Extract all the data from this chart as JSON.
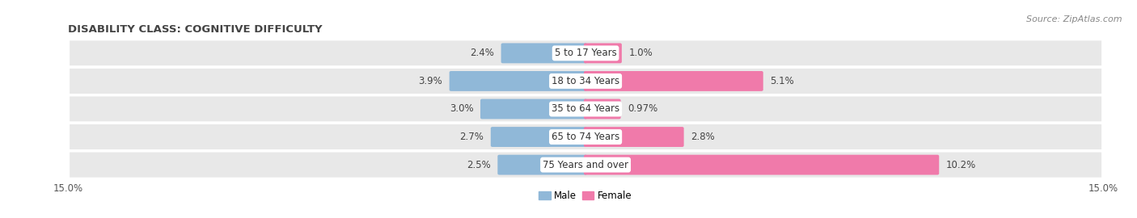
{
  "title": "DISABILITY CLASS: COGNITIVE DIFFICULTY",
  "source": "Source: ZipAtlas.com",
  "categories": [
    "5 to 17 Years",
    "18 to 34 Years",
    "35 to 64 Years",
    "65 to 74 Years",
    "75 Years and over"
  ],
  "male_values": [
    2.4,
    3.9,
    3.0,
    2.7,
    2.5
  ],
  "female_values": [
    1.0,
    5.1,
    0.97,
    2.8,
    10.2
  ],
  "male_color": "#90b8d8",
  "female_color": "#f07aaa",
  "xlim": 15.0,
  "bar_height": 0.62,
  "row_bg_color": "#e8e8e8",
  "row_sep_color": "#ffffff",
  "title_fontsize": 9.5,
  "label_fontsize": 8.5,
  "tick_fontsize": 8.5,
  "source_fontsize": 8,
  "val_color": "#444444",
  "cat_label_color": "#333333",
  "title_color": "#444444"
}
